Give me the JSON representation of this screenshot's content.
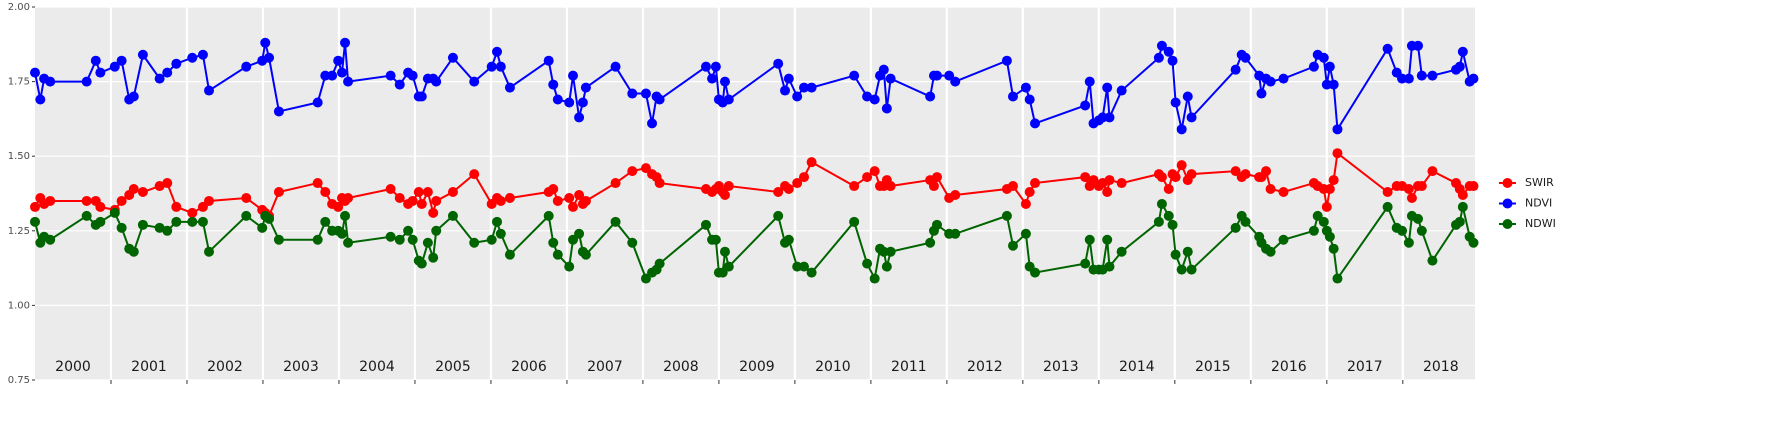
{
  "chart_data": {
    "type": "line",
    "x": [
      2000.0,
      2000.07,
      2000.12,
      2000.2,
      2000.68,
      2000.8,
      2000.86,
      2001.05,
      2001.14,
      2001.24,
      2001.3,
      2001.42,
      2001.64,
      2001.74,
      2001.86,
      2002.07,
      2002.21,
      2002.29,
      2002.78,
      2002.99,
      2003.03,
      2003.08,
      2003.21,
      2003.72,
      2003.82,
      2003.91,
      2003.99,
      2004.04,
      2004.08,
      2004.12,
      2004.68,
      2004.8,
      2004.91,
      2004.97,
      2005.05,
      2005.09,
      2005.17,
      2005.24,
      2005.28,
      2005.5,
      2005.78,
      2006.01,
      2006.08,
      2006.13,
      2006.25,
      2006.76,
      2006.82,
      2006.88,
      2007.03,
      2007.08,
      2007.16,
      2007.21,
      2007.25,
      2007.64,
      2007.86,
      2008.04,
      2008.12,
      2008.18,
      2008.22,
      2008.83,
      2008.91,
      2008.96,
      2009.0,
      2009.05,
      2009.08,
      2009.13,
      2009.78,
      2009.87,
      2009.92,
      2010.03,
      2010.12,
      2010.22,
      2010.78,
      2010.95,
      2011.05,
      2011.12,
      2011.17,
      2011.21,
      2011.26,
      2011.78,
      2011.83,
      2011.87,
      2012.03,
      2012.11,
      2012.79,
      2012.87,
      2013.04,
      2013.09,
      2013.16,
      2013.82,
      2013.88,
      2013.93,
      2014.0,
      2014.05,
      2014.11,
      2014.14,
      2014.3,
      2014.79,
      2014.83,
      2014.92,
      2014.97,
      2015.01,
      2015.09,
      2015.17,
      2015.22,
      2015.8,
      2015.88,
      2015.93,
      2016.11,
      2016.14,
      2016.2,
      2016.26,
      2016.43,
      2016.83,
      2016.88,
      2016.96,
      2017.0,
      2017.04,
      2017.09,
      2017.14,
      2017.8,
      2017.92,
      2017.99,
      2018.08,
      2018.12,
      2018.2,
      2018.25,
      2018.39,
      2018.7,
      2018.75,
      2018.79,
      2018.88,
      2018.93
    ],
    "series": [
      {
        "name": "SWIR",
        "color": "#ff0000",
        "values": [
          1.33,
          1.36,
          1.34,
          1.35,
          1.35,
          1.35,
          1.33,
          1.32,
          1.35,
          1.37,
          1.39,
          1.38,
          1.4,
          1.41,
          1.33,
          1.31,
          1.33,
          1.35,
          1.36,
          1.32,
          1.31,
          1.3,
          1.38,
          1.41,
          1.38,
          1.34,
          1.33,
          1.36,
          1.35,
          1.36,
          1.39,
          1.36,
          1.34,
          1.35,
          1.38,
          1.34,
          1.38,
          1.31,
          1.35,
          1.38,
          1.44,
          1.34,
          1.36,
          1.35,
          1.36,
          1.38,
          1.39,
          1.35,
          1.36,
          1.33,
          1.37,
          1.34,
          1.35,
          1.41,
          1.45,
          1.46,
          1.44,
          1.43,
          1.41,
          1.39,
          1.38,
          1.39,
          1.4,
          1.38,
          1.37,
          1.4,
          1.38,
          1.4,
          1.39,
          1.41,
          1.43,
          1.48,
          1.4,
          1.43,
          1.45,
          1.4,
          1.4,
          1.42,
          1.4,
          1.42,
          1.4,
          1.43,
          1.36,
          1.37,
          1.39,
          1.4,
          1.34,
          1.38,
          1.41,
          1.43,
          1.4,
          1.42,
          1.4,
          1.41,
          1.38,
          1.42,
          1.41,
          1.44,
          1.43,
          1.39,
          1.44,
          1.43,
          1.47,
          1.42,
          1.44,
          1.45,
          1.43,
          1.44,
          1.43,
          1.43,
          1.45,
          1.39,
          1.38,
          1.41,
          1.4,
          1.39,
          1.33,
          1.39,
          1.42,
          1.51,
          1.38,
          1.4,
          1.4,
          1.39,
          1.36,
          1.4,
          1.4,
          1.45,
          1.41,
          1.39,
          1.37,
          1.4,
          1.4
        ]
      },
      {
        "name": "NDVI",
        "color": "#0000ff",
        "values": [
          1.78,
          1.69,
          1.76,
          1.75,
          1.75,
          1.82,
          1.78,
          1.8,
          1.82,
          1.69,
          1.7,
          1.84,
          1.76,
          1.78,
          1.81,
          1.83,
          1.84,
          1.72,
          1.8,
          1.82,
          1.88,
          1.83,
          1.65,
          1.68,
          1.77,
          1.77,
          1.82,
          1.78,
          1.88,
          1.75,
          1.77,
          1.74,
          1.78,
          1.77,
          1.7,
          1.7,
          1.76,
          1.76,
          1.75,
          1.83,
          1.75,
          1.8,
          1.85,
          1.8,
          1.73,
          1.82,
          1.74,
          1.69,
          1.68,
          1.77,
          1.63,
          1.68,
          1.73,
          1.8,
          1.71,
          1.71,
          1.61,
          1.7,
          1.69,
          1.8,
          1.76,
          1.8,
          1.69,
          1.68,
          1.75,
          1.69,
          1.81,
          1.72,
          1.76,
          1.7,
          1.73,
          1.73,
          1.77,
          1.7,
          1.69,
          1.77,
          1.79,
          1.66,
          1.76,
          1.7,
          1.77,
          1.77,
          1.77,
          1.75,
          1.82,
          1.7,
          1.73,
          1.69,
          1.61,
          1.67,
          1.75,
          1.61,
          1.62,
          1.63,
          1.73,
          1.63,
          1.72,
          1.83,
          1.87,
          1.85,
          1.82,
          1.68,
          1.59,
          1.7,
          1.63,
          1.79,
          1.84,
          1.83,
          1.77,
          1.71,
          1.76,
          1.75,
          1.76,
          1.8,
          1.84,
          1.83,
          1.74,
          1.8,
          1.74,
          1.59,
          1.86,
          1.78,
          1.76,
          1.76,
          1.87,
          1.87,
          1.77,
          1.77,
          1.79,
          1.8,
          1.85,
          1.75,
          1.76
        ]
      },
      {
        "name": "NDWI",
        "color": "#006400",
        "values": [
          1.28,
          1.21,
          1.23,
          1.22,
          1.3,
          1.27,
          1.28,
          1.31,
          1.26,
          1.19,
          1.18,
          1.27,
          1.26,
          1.25,
          1.28,
          1.28,
          1.28,
          1.18,
          1.3,
          1.26,
          1.3,
          1.29,
          1.22,
          1.22,
          1.28,
          1.25,
          1.25,
          1.24,
          1.3,
          1.21,
          1.23,
          1.22,
          1.25,
          1.22,
          1.15,
          1.14,
          1.21,
          1.16,
          1.25,
          1.3,
          1.21,
          1.22,
          1.28,
          1.24,
          1.17,
          1.3,
          1.21,
          1.17,
          1.13,
          1.22,
          1.24,
          1.18,
          1.17,
          1.28,
          1.21,
          1.09,
          1.11,
          1.12,
          1.14,
          1.27,
          1.22,
          1.22,
          1.11,
          1.11,
          1.18,
          1.13,
          1.3,
          1.21,
          1.22,
          1.13,
          1.13,
          1.11,
          1.28,
          1.14,
          1.09,
          1.19,
          1.18,
          1.13,
          1.18,
          1.21,
          1.25,
          1.27,
          1.24,
          1.24,
          1.3,
          1.2,
          1.24,
          1.13,
          1.11,
          1.14,
          1.22,
          1.12,
          1.12,
          1.12,
          1.22,
          1.13,
          1.18,
          1.28,
          1.34,
          1.3,
          1.27,
          1.17,
          1.12,
          1.18,
          1.12,
          1.26,
          1.3,
          1.28,
          1.23,
          1.21,
          1.19,
          1.18,
          1.22,
          1.25,
          1.3,
          1.28,
          1.25,
          1.23,
          1.19,
          1.09,
          1.33,
          1.26,
          1.25,
          1.21,
          1.3,
          1.29,
          1.25,
          1.15,
          1.27,
          1.28,
          1.33,
          1.23,
          1.21
        ]
      }
    ],
    "xlim": [
      2000.0,
      2018.95
    ],
    "xticks": [
      2001,
      2002,
      2003,
      2004,
      2005,
      2006,
      2007,
      2008,
      2009,
      2010,
      2011,
      2012,
      2013,
      2014,
      2015,
      2016,
      2017,
      2018
    ],
    "year_labels": [
      {
        "value": 2000.5,
        "label": "2000"
      },
      {
        "value": 2001.5,
        "label": "2001"
      },
      {
        "value": 2002.5,
        "label": "2002"
      },
      {
        "value": 2003.5,
        "label": "2003"
      },
      {
        "value": 2004.5,
        "label": "2004"
      },
      {
        "value": 2005.5,
        "label": "2005"
      },
      {
        "value": 2006.5,
        "label": "2006"
      },
      {
        "value": 2007.5,
        "label": "2007"
      },
      {
        "value": 2008.5,
        "label": "2008"
      },
      {
        "value": 2009.5,
        "label": "2009"
      },
      {
        "value": 2010.5,
        "label": "2010"
      },
      {
        "value": 2011.5,
        "label": "2011"
      },
      {
        "value": 2012.5,
        "label": "2012"
      },
      {
        "value": 2013.5,
        "label": "2013"
      },
      {
        "value": 2014.5,
        "label": "2014"
      },
      {
        "value": 2015.5,
        "label": "2015"
      },
      {
        "value": 2016.5,
        "label": "2016"
      },
      {
        "value": 2017.5,
        "label": "2017"
      },
      {
        "value": 2018.5,
        "label": "2018"
      }
    ],
    "ylim": [
      0.75,
      2.0
    ],
    "yticks": [
      0.75,
      {
        "value": 1.0,
        "label": "1.00"
      },
      1.25,
      {
        "value": 1.5,
        "label": "1.50"
      },
      1.75,
      {
        "value": 2.0,
        "label": "2.00"
      }
    ],
    "grid": true,
    "legend": "right"
  }
}
